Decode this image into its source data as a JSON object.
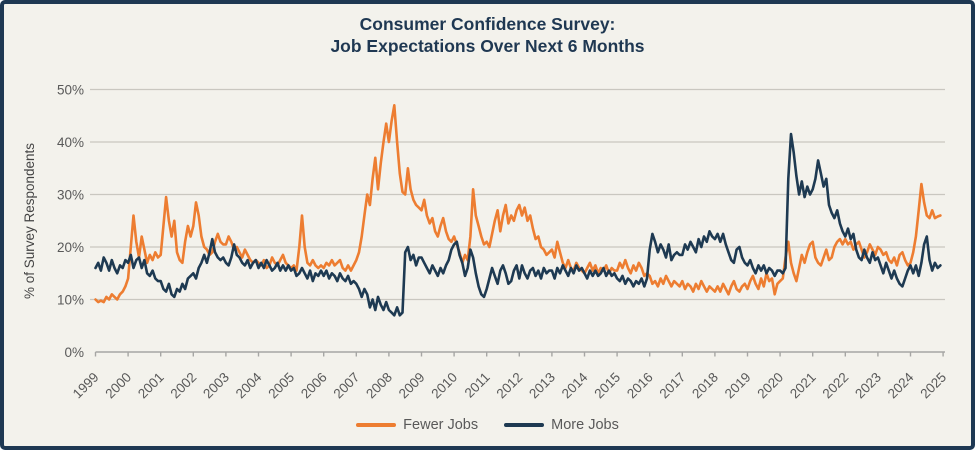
{
  "chart": {
    "title_line1": "Consumer Confidence Survey:",
    "title_line2": "Job Expectations Over Next 6 Months"
  },
  "colors": {
    "background": "#f3f2ec",
    "frame": "#1e3853",
    "title_text": "#1f3852",
    "grid": "#c9c7c0",
    "axis": "#a6a6a4",
    "tick_text": "#595959",
    "axis_title_text": "#444444",
    "legend_text": "#595959",
    "fewer_jobs": "#ed7d31",
    "more_jobs": "#1e3a52"
  },
  "chart_data": {
    "type": "line",
    "title": "Consumer Confidence Survey: Job Expectations Over Next 6 Months",
    "xlabel": "",
    "ylabel": "% of Survey Respondents",
    "ylim": [
      0,
      50
    ],
    "grid": true,
    "legend_position": "bottom",
    "frequency": "monthly",
    "x_start_year": 1999,
    "points_per_year": 12,
    "y_ticks": [
      {
        "value": 0,
        "label": "0%"
      },
      {
        "value": 10,
        "label": "10%"
      },
      {
        "value": 20,
        "label": "20%"
      },
      {
        "value": 30,
        "label": "30%"
      },
      {
        "value": 40,
        "label": "40%"
      },
      {
        "value": 50,
        "label": "50%"
      }
    ],
    "x_ticks": [
      "1999",
      "2000",
      "2001",
      "2002",
      "2003",
      "2004",
      "2005",
      "2006",
      "2007",
      "2008",
      "2009",
      "2010",
      "2011",
      "2012",
      "2013",
      "2014",
      "2015",
      "2016",
      "2017",
      "2018",
      "2019",
      "2020",
      "2021",
      "2022",
      "2023",
      "2024",
      "2025"
    ],
    "series": [
      {
        "name": "Fewer Jobs",
        "color": "#ed7d31",
        "values": [
          10,
          9.5,
          9.8,
          9.5,
          10.5,
          10,
          11,
          10.5,
          10,
          11,
          11.5,
          12.5,
          14,
          20,
          26,
          21,
          18,
          22,
          19.5,
          17,
          18.5,
          17.5,
          19,
          18,
          18.5,
          24,
          29.5,
          25,
          22,
          25,
          19,
          17.5,
          17,
          21,
          24,
          22,
          24,
          28.5,
          26,
          22,
          20,
          19.5,
          18.5,
          19,
          21,
          22.5,
          21,
          20.5,
          20.5,
          22,
          21,
          19.5,
          20,
          19,
          18,
          19.5,
          18.5,
          17.5,
          17,
          17.5,
          17,
          16.5,
          17.5,
          16,
          16.5,
          18,
          17,
          16.5,
          17.5,
          18.5,
          17,
          16.5,
          16,
          16.5,
          15.5,
          20,
          26,
          20,
          17,
          16.5,
          17.5,
          16.5,
          16,
          16.5,
          16,
          17,
          16.5,
          17.5,
          16.5,
          17,
          17.5,
          16,
          15.5,
          16.5,
          15.5,
          16.5,
          17.5,
          19,
          22,
          26,
          30,
          28,
          33,
          37,
          31,
          36,
          40,
          43.5,
          40,
          44,
          47,
          40,
          34,
          30.5,
          30,
          35,
          31,
          29,
          28,
          27.5,
          27,
          29,
          26,
          24.5,
          25.5,
          23,
          22,
          24,
          25.5,
          23,
          21.5,
          21,
          22,
          20.5,
          19,
          17,
          18.5,
          17.5,
          22,
          31,
          26,
          24,
          22,
          20.5,
          21,
          20,
          22.5,
          25,
          27,
          23,
          26,
          28,
          24.5,
          26,
          25,
          27,
          28,
          26,
          27.5,
          25,
          26,
          23.5,
          21.5,
          22,
          20,
          19.5,
          18.5,
          19,
          19.5,
          18,
          21,
          19,
          17,
          16,
          17.5,
          16,
          15.5,
          17,
          16,
          15.5,
          15,
          16,
          17,
          15.5,
          16.5,
          15,
          16,
          15.5,
          16.5,
          15,
          16,
          15.5,
          15.5,
          17,
          16,
          17.5,
          16,
          15,
          16.5,
          15.5,
          17,
          16,
          14.5,
          15,
          14.5,
          13,
          13.5,
          12.5,
          14,
          13,
          14.5,
          13.5,
          12.5,
          13.5,
          13,
          12.5,
          13.5,
          12,
          13,
          12.5,
          11.5,
          13,
          12,
          13.5,
          12.5,
          11.5,
          12.5,
          12,
          11.5,
          12.5,
          11.5,
          13,
          12,
          11,
          12.5,
          13.5,
          12,
          11.5,
          12.5,
          13,
          12,
          13.5,
          14.5,
          13,
          12,
          14,
          12.5,
          15,
          13.5,
          14,
          11,
          13,
          13.5,
          14,
          18,
          21,
          17,
          15,
          13.5,
          16,
          18.5,
          17,
          19,
          20.5,
          21,
          18,
          17,
          16.5,
          18,
          19.5,
          17.5,
          18,
          20,
          21,
          21.5,
          20.5,
          21.5,
          20.5,
          21,
          19.5,
          20.5,
          21,
          19.5,
          18,
          19,
          20.5,
          19.5,
          18.5,
          20,
          19.5,
          18.5,
          19,
          17.5,
          17,
          18,
          16.5,
          18.5,
          19,
          17.5,
          16.5,
          17,
          19,
          22,
          27,
          32,
          28.5,
          26,
          25.5,
          27,
          25.5,
          25.8,
          26
        ]
      },
      {
        "name": "More Jobs",
        "color": "#1e3a52",
        "values": [
          16,
          17,
          15.5,
          18,
          17,
          15.5,
          17.5,
          16,
          15,
          16.5,
          16,
          17.5,
          17,
          18.5,
          16,
          17.5,
          18,
          16,
          17.5,
          15,
          14.5,
          15.5,
          14,
          13.5,
          13.5,
          12,
          11.5,
          13,
          11,
          10.5,
          12,
          11.5,
          13,
          12,
          14,
          14.5,
          15,
          14,
          16,
          17,
          18.5,
          17,
          19,
          21.5,
          19,
          18,
          17.5,
          18,
          17,
          16.5,
          18,
          20.5,
          18.5,
          18,
          17,
          16.5,
          17.5,
          16,
          17,
          17.5,
          16,
          17,
          16,
          17.5,
          16.5,
          15.5,
          16,
          17,
          15.5,
          16.5,
          15.5,
          16.5,
          15.5,
          16,
          14.5,
          15,
          16,
          15,
          14,
          15.5,
          13.5,
          15,
          14.5,
          15.5,
          14.5,
          15.5,
          14,
          15,
          14.5,
          13.5,
          15,
          14,
          13.5,
          14.5,
          13,
          13.5,
          13,
          12,
          10.5,
          12,
          11,
          8.5,
          10,
          8,
          10.5,
          9,
          8,
          9.5,
          8,
          7.5,
          7,
          8.5,
          7,
          7.5,
          19,
          20,
          17.5,
          18.5,
          16.5,
          18,
          18,
          17,
          16,
          15,
          16.5,
          15.5,
          14.5,
          16,
          15,
          16.5,
          17.5,
          19.5,
          20.5,
          21,
          18.5,
          17,
          14.5,
          16,
          19.5,
          18,
          15,
          12.5,
          11,
          10.5,
          12,
          14,
          16,
          14.5,
          13,
          15.5,
          16.5,
          15,
          13,
          13.5,
          15.5,
          16.5,
          14,
          16.5,
          15,
          14,
          15.5,
          16,
          14.5,
          15.5,
          14,
          16,
          15,
          15.5,
          15.5,
          14,
          16,
          15,
          16.5,
          15.5,
          14.5,
          16,
          15,
          16.5,
          15.5,
          16,
          15,
          14,
          15.5,
          14.5,
          15.5,
          14.5,
          15,
          16,
          14.5,
          15.5,
          14.5,
          15,
          14,
          13.5,
          14.5,
          13,
          14,
          13.5,
          12.5,
          13.5,
          13,
          14,
          12.5,
          14,
          19.5,
          22.5,
          21,
          19,
          20.5,
          19.5,
          18,
          20.5,
          17.5,
          18.5,
          19,
          18.5,
          18.5,
          20.5,
          19.5,
          21,
          20,
          19,
          21.5,
          20,
          22,
          21,
          23,
          22,
          21.5,
          22.5,
          21,
          22.5,
          20.5,
          19,
          17.5,
          17,
          19.5,
          20,
          18,
          17,
          16.5,
          17.5,
          16,
          15,
          16.5,
          15.5,
          16.5,
          15,
          16,
          15.5,
          14.5,
          15.5,
          15.5,
          15,
          16,
          33,
          41.5,
          38,
          33.5,
          30,
          32.5,
          29.5,
          31.5,
          30,
          31,
          33,
          36.5,
          34,
          31.5,
          33,
          28,
          26.5,
          25.5,
          27,
          24.5,
          23,
          22,
          23.5,
          21.5,
          22.5,
          19.5,
          18,
          17.5,
          19.5,
          18,
          17,
          19,
          17.5,
          18,
          16.5,
          15,
          17,
          15.5,
          14,
          15.5,
          14,
          13,
          12.5,
          14,
          15.5,
          16.5,
          15,
          16.5,
          14.5,
          17,
          20.5,
          22,
          17.5,
          15.5,
          17,
          16,
          16.5
        ]
      }
    ]
  },
  "legend": {
    "items": [
      {
        "label": "Fewer Jobs",
        "color": "#ed7d31"
      },
      {
        "label": "More Jobs",
        "color": "#1e3a52"
      }
    ]
  }
}
